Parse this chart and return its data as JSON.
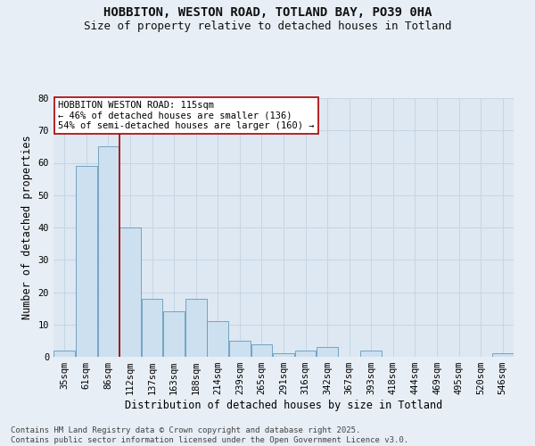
{
  "title_line1": "HOBBITON, WESTON ROAD, TOTLAND BAY, PO39 0HA",
  "title_line2": "Size of property relative to detached houses in Totland",
  "xlabel": "Distribution of detached houses by size in Totland",
  "ylabel": "Number of detached properties",
  "categories": [
    "35sqm",
    "61sqm",
    "86sqm",
    "112sqm",
    "137sqm",
    "163sqm",
    "188sqm",
    "214sqm",
    "239sqm",
    "265sqm",
    "291sqm",
    "316sqm",
    "342sqm",
    "367sqm",
    "393sqm",
    "418sqm",
    "444sqm",
    "469sqm",
    "495sqm",
    "520sqm",
    "546sqm"
  ],
  "bar_values": [
    2,
    59,
    65,
    40,
    18,
    14,
    18,
    11,
    5,
    4,
    1,
    2,
    3,
    0,
    2,
    0,
    0,
    0,
    0,
    0,
    1
  ],
  "bar_color": "#cce0f0",
  "bar_edge_color": "#6699bb",
  "background_color": "#dde8f2",
  "grid_color": "#c5d5e5",
  "vline_color": "#aa0000",
  "vline_x_idx": 2.5,
  "annotation_text": "HOBBITON WESTON ROAD: 115sqm\n← 46% of detached houses are smaller (136)\n54% of semi-detached houses are larger (160) →",
  "annotation_box_facecolor": "#ffffff",
  "annotation_box_edgecolor": "#aa0000",
  "ylim": [
    0,
    80
  ],
  "yticks": [
    0,
    10,
    20,
    30,
    40,
    50,
    60,
    70,
    80
  ],
  "footnote": "Contains HM Land Registry data © Crown copyright and database right 2025.\nContains public sector information licensed under the Open Government Licence v3.0.",
  "title_fontsize": 10,
  "subtitle_fontsize": 9,
  "axis_label_fontsize": 8.5,
  "tick_fontsize": 7.5,
  "annotation_fontsize": 7.5,
  "footnote_fontsize": 6.5
}
